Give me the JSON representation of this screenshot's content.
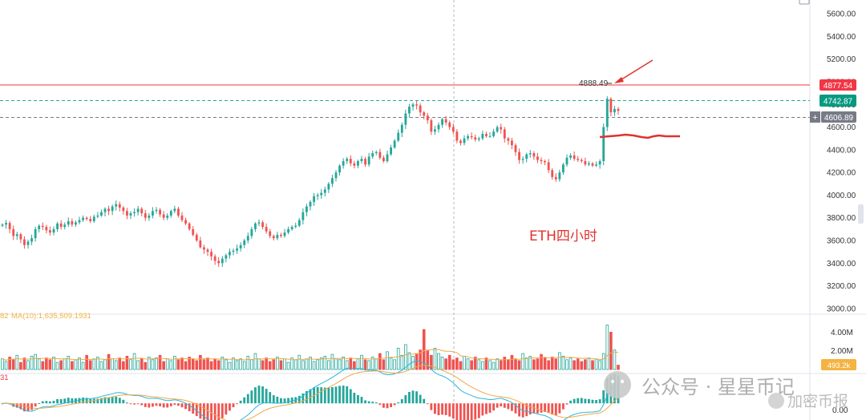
{
  "chart_data": {
    "type": "candlestick",
    "annotation": "ETH四小时",
    "price_axis": {
      "ticks": [
        "5600.00",
        "5400.00",
        "5200.00",
        "5000.00",
        "4800.00",
        "4600.00",
        "4400.00",
        "4200.00",
        "4000.00",
        "3800.00",
        "3600.00",
        "3400.00",
        "3200.00",
        "3000.00"
      ],
      "range": [
        2950,
        5650
      ]
    },
    "price_labels": {
      "high_marker": "4888.49",
      "red_line": "4877.54",
      "last_price": "4742.87",
      "gray_line": "4606.89"
    },
    "volume": {
      "ma_label": "MA(10):1,635,509.1931",
      "ma_prefix": "82",
      "axis_ticks": [
        "4.00M",
        "2.00M"
      ],
      "current": "493.2k",
      "range": [
        0,
        5500000
      ]
    },
    "macd": {
      "label_prefix": "31",
      "axis_ticks": [
        "0.00"
      ],
      "range": [
        -75,
        120
      ]
    },
    "candles_close": [
      3740,
      3755,
      3700,
      3640,
      3655,
      3610,
      3560,
      3590,
      3620,
      3700,
      3730,
      3720,
      3690,
      3670,
      3700,
      3750,
      3720,
      3740,
      3770,
      3740,
      3760,
      3780,
      3800,
      3790,
      3770,
      3810,
      3820,
      3850,
      3880,
      3860,
      3900,
      3920,
      3890,
      3860,
      3820,
      3840,
      3850,
      3880,
      3840,
      3800,
      3820,
      3860,
      3870,
      3830,
      3800,
      3820,
      3860,
      3880,
      3820,
      3780,
      3750,
      3700,
      3650,
      3600,
      3540,
      3520,
      3500,
      3460,
      3420,
      3400,
      3440,
      3470,
      3500,
      3510,
      3530,
      3560,
      3600,
      3640,
      3700,
      3750,
      3760,
      3720,
      3680,
      3640,
      3620,
      3650,
      3640,
      3670,
      3700,
      3720,
      3730,
      3780,
      3850,
      3900,
      3940,
      3990,
      4000,
      4020,
      4050,
      4100,
      4150,
      4200,
      4260,
      4300,
      4320,
      4280,
      4260,
      4300,
      4320,
      4270,
      4340,
      4370,
      4380,
      4330,
      4300,
      4360,
      4420,
      4480,
      4550,
      4620,
      4720,
      4780,
      4800,
      4790,
      4730,
      4700,
      4660,
      4560,
      4580,
      4620,
      4670,
      4640,
      4600,
      4560,
      4480,
      4460,
      4500,
      4520,
      4510,
      4490,
      4500,
      4540,
      4520,
      4520,
      4560,
      4600,
      4580,
      4500,
      4480,
      4440,
      4380,
      4310,
      4320,
      4360,
      4370,
      4340,
      4310,
      4300,
      4290,
      4220,
      4160,
      4140,
      4200,
      4270,
      4330,
      4350,
      4320,
      4310,
      4300,
      4270,
      4280,
      4260,
      4270,
      4300,
      4600,
      4850,
      4730,
      4760,
      4742.87
    ],
    "volume_values": [
      1.2,
      0.9,
      1.4,
      1.1,
      1.6,
      0.8,
      1.3,
      1.0,
      1.5,
      1.7,
      1.2,
      0.9,
      1.3,
      1.1,
      1.4,
      0.8,
      1.0,
      1.2,
      1.5,
      0.9,
      1.1,
      1.3,
      0.8,
      1.6,
      1.0,
      1.2,
      1.4,
      0.9,
      1.1,
      1.7,
      1.2,
      1.0,
      1.3,
      0.9,
      1.5,
      1.1,
      1.8,
      1.0,
      1.2,
      0.8,
      1.4,
      1.1,
      1.3,
      1.6,
      0.9,
      1.2,
      1.0,
      1.5,
      1.1,
      1.3,
      0.9,
      1.4,
      1.2,
      1.0,
      1.6,
      1.1,
      1.3,
      0.9,
      1.2,
      1.0,
      1.4,
      1.1,
      0.8,
      1.3,
      1.0,
      1.2,
      0.9,
      1.5,
      1.1,
      1.8,
      1.2,
      1.0,
      1.3,
      0.9,
      1.1,
      1.4,
      1.0,
      1.2,
      0.8,
      1.3,
      1.1,
      1.6,
      1.0,
      1.2,
      1.4,
      0.9,
      1.1,
      1.3,
      1.5,
      1.0,
      1.7,
      1.2,
      1.1,
      1.4,
      1.0,
      1.3,
      0.9,
      1.2,
      1.6,
      1.1,
      1.0,
      1.4,
      1.2,
      1.8,
      1.1,
      2.0,
      1.3,
      1.1,
      2.4,
      1.6,
      2.8,
      1.9,
      1.5,
      1.8,
      2.2,
      4.5,
      2.1,
      1.6,
      2.4,
      1.8,
      1.4,
      1.2,
      1.6,
      1.1,
      1.3,
      0.9,
      1.5,
      1.2,
      1.0,
      1.4,
      1.1,
      0.9,
      1.3,
      1.0,
      0.8,
      1.2,
      1.0,
      1.4,
      1.1,
      1.6,
      1.2,
      1.0,
      1.8,
      1.3,
      1.5,
      1.1,
      1.2,
      1.7,
      1.3,
      1.0,
      1.4,
      1.2,
      1.9,
      1.5,
      1.1,
      1.3,
      1.0,
      1.2,
      0.9,
      1.1,
      1.3,
      1.0,
      1.2,
      1.0,
      1.8,
      5.0,
      4.2,
      2.2,
      0.49
    ]
  },
  "watermark": {
    "top_text": "公众号 · 星星币记",
    "bottom_text": "加密币报"
  },
  "colors": {
    "up": "#26a69a",
    "down": "#ef5350",
    "ma_line": "#f0a94a",
    "red_line": "#f23645",
    "last_price": "#089981",
    "gray_label": "#787b86",
    "volume_label": "#f5b342",
    "annotation": "#e0322e"
  }
}
